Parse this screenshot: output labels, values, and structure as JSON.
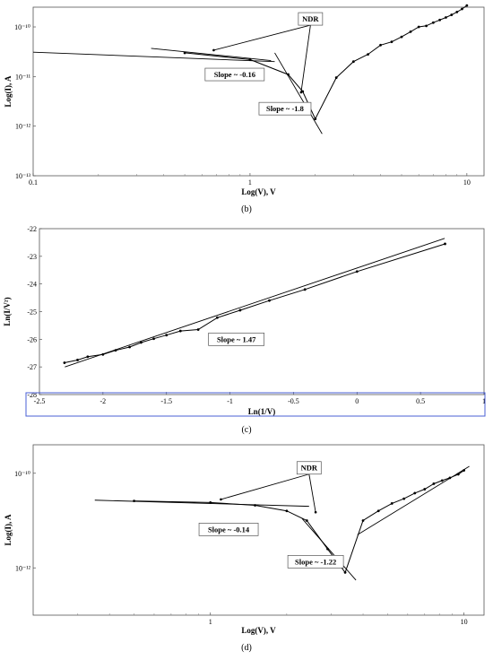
{
  "chart_data": [
    {
      "type": "line",
      "panel_label": "(b)",
      "xlabel": "Log(V), V",
      "ylabel": "Log(I), A",
      "xscale": "log",
      "yscale": "log",
      "xlim": [
        0.1,
        12
      ],
      "ylim": [
        1e-13,
        2.5e-10
      ],
      "x_ticks": [
        {
          "v": 0.1,
          "label": "0.1"
        },
        {
          "v": 1,
          "label": "1"
        },
        {
          "v": 10,
          "label": "10"
        }
      ],
      "y_ticks": [
        {
          "v": 1e-13,
          "label": "10⁻¹³"
        },
        {
          "v": 1e-12,
          "label": "10⁻¹²"
        },
        {
          "v": 1e-11,
          "label": "10⁻¹¹"
        },
        {
          "v": 1e-10,
          "label": "10⁻¹⁰"
        }
      ],
      "series": [
        {
          "x": [
            0.5,
            1.0,
            1.5,
            1.75,
            2.0,
            2.5,
            3.0,
            3.5,
            4.0,
            4.5,
            5.0,
            5.5,
            6.0,
            6.5,
            7.0,
            7.5,
            8.0,
            8.5,
            9.0,
            9.5,
            10.0
          ],
          "y": [
            3e-11,
            2.2e-11,
            1.1e-11,
            5e-12,
            1.4e-12,
            9.5e-12,
            2e-11,
            2.8e-11,
            4.3e-11,
            5e-11,
            6.3e-11,
            8e-11,
            1e-10,
            1.05e-10,
            1.22e-10,
            1.38e-10,
            1.55e-10,
            1.75e-10,
            2e-10,
            2.3e-10,
            2.7e-10
          ]
        }
      ],
      "fits": [
        {
          "x": [
            0.1,
            1.3
          ],
          "y": [
            3.1e-11,
            2e-11
          ]
        },
        {
          "x": [
            0.35,
            1.25
          ],
          "y": [
            3.7e-11,
            2.1e-11
          ]
        },
        {
          "x": [
            1.3,
            2.15
          ],
          "y": [
            3e-11,
            7e-13
          ]
        }
      ],
      "annotations": [
        {
          "text": "NDR",
          "x": 1.9,
          "y": 1.45e-10,
          "arrows": [
            {
              "x": 0.68,
              "y": 3.4e-11
            },
            {
              "x": 1.72,
              "y": 4.8e-12
            }
          ]
        },
        {
          "text": "Slope ~ -0.16",
          "x": 0.85,
          "y": 1.1e-11
        },
        {
          "text": "Slope ~ -1.8",
          "x": 1.45,
          "y": 2.25e-12
        }
      ]
    },
    {
      "type": "line",
      "panel_label": "(c)",
      "xlabel": "Ln(1/V)",
      "ylabel": "Ln(I/V²)",
      "xlim": [
        -2.5,
        1
      ],
      "ylim": [
        -28,
        -22
      ],
      "x_ticks": [
        {
          "v": -2.5,
          "label": "-2.5"
        },
        {
          "v": -2,
          "label": "-2"
        },
        {
          "v": -1.5,
          "label": "-1.5"
        },
        {
          "v": -1,
          "label": "-1"
        },
        {
          "v": -0.5,
          "label": "-0.5"
        },
        {
          "v": 0,
          "label": "0"
        },
        {
          "v": 0.5,
          "label": "0.5"
        },
        {
          "v": 1,
          "label": "1"
        }
      ],
      "y_ticks": [
        {
          "v": -28,
          "label": "-28"
        },
        {
          "v": -27,
          "label": "-27"
        },
        {
          "v": -26,
          "label": "-26"
        },
        {
          "v": -25,
          "label": "-25"
        },
        {
          "v": -24,
          "label": "-24"
        },
        {
          "v": -23,
          "label": "-23"
        },
        {
          "v": -22,
          "label": "-22"
        }
      ],
      "series": [
        {
          "x": [
            -2.303,
            -2.2,
            -2.12,
            -2.0,
            -1.9,
            -1.79,
            -1.7,
            -1.6,
            -1.5,
            -1.39,
            -1.25,
            -1.1,
            -0.92,
            -0.69,
            -0.41,
            0.0,
            0.693
          ],
          "y": [
            -26.85,
            -26.75,
            -26.63,
            -26.55,
            -26.4,
            -26.28,
            -26.12,
            -25.98,
            -25.85,
            -25.7,
            -25.65,
            -25.22,
            -24.95,
            -24.6,
            -24.2,
            -23.55,
            -22.55
          ]
        }
      ],
      "fits": [
        {
          "x": [
            -2.3,
            0.69
          ],
          "y": [
            -27.0,
            -22.35
          ]
        }
      ],
      "annotations": [
        {
          "text": "Slope ~ 1.47",
          "x": -0.95,
          "y": -26.0
        }
      ]
    },
    {
      "type": "line",
      "panel_label": "(d)",
      "xlabel": "Log(V), V",
      "ylabel": "Log(I), A",
      "xscale": "log",
      "yscale": "log",
      "xlim": [
        0.2,
        12
      ],
      "ylim": [
        1e-13,
        4e-10
      ],
      "x_ticks": [
        {
          "v": 1,
          "label": "1"
        },
        {
          "v": 10,
          "label": "10"
        }
      ],
      "y_ticks": [
        {
          "v": 1e-12,
          "label": "10⁻¹²"
        },
        {
          "v": 1e-10,
          "label": "10⁻¹⁰"
        }
      ],
      "series": [
        {
          "x": [
            0.5,
            1.0,
            1.5,
            2.0,
            2.4,
            2.9,
            3.4,
            4.0,
            4.6,
            5.2,
            5.8,
            6.4,
            7.0,
            7.6,
            8.2,
            8.8,
            9.5,
            10.0
          ],
          "y": [
            2.6e-11,
            2.4e-11,
            2.1e-11,
            1.6e-11,
            1e-11,
            2.5e-12,
            8e-13,
            1e-11,
            1.6e-11,
            2.3e-11,
            2.9e-11,
            3.8e-11,
            4.6e-11,
            6e-11,
            7e-11,
            8e-11,
            9.5e-11,
            1.15e-10
          ]
        }
      ],
      "fits": [
        {
          "x": [
            0.35,
            2.45
          ],
          "y": [
            2.7e-11,
            2e-11
          ]
        },
        {
          "x": [
            2.3,
            3.75
          ],
          "y": [
            1.1e-11,
            5.5e-13
          ]
        },
        {
          "x": [
            3.8,
            10.5
          ],
          "y": [
            5e-12,
            1.4e-10
          ]
        }
      ],
      "annotations": [
        {
          "text": "NDR",
          "x": 2.45,
          "y": 1.3e-10,
          "arrows": [
            {
              "x": 1.1,
              "y": 2.8e-11
            },
            {
              "x": 2.6,
              "y": 1.5e-11
            }
          ]
        },
        {
          "text": "Slope ~ -0.14",
          "x": 1.18,
          "y": 6.5e-12
        },
        {
          "text": "Slope ~ -1.22",
          "x": 2.6,
          "y": 1.35e-12
        }
      ]
    }
  ]
}
